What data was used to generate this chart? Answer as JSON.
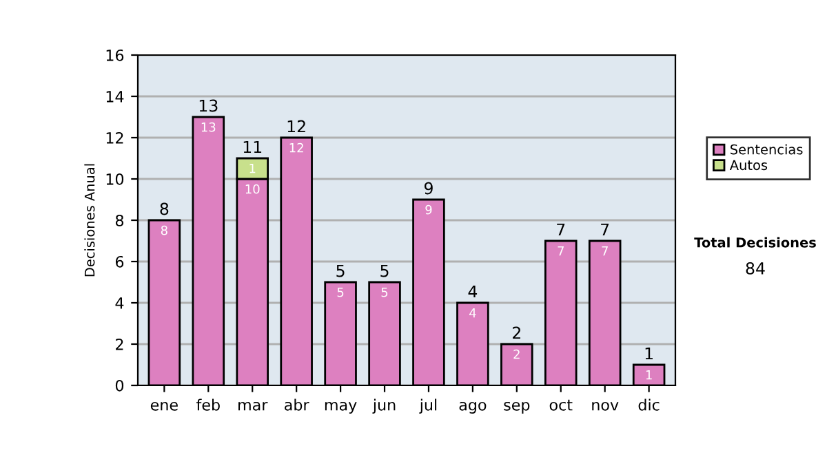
{
  "chart_data": {
    "type": "bar",
    "ylabel": "Decisiones Anual",
    "stacked": true,
    "categories": [
      "ene",
      "feb",
      "mar",
      "abr",
      "may",
      "jun",
      "jul",
      "ago",
      "sep",
      "oct",
      "nov",
      "dic"
    ],
    "series": [
      {
        "name": "Sentencias",
        "color": "#dd80c0",
        "values": [
          8,
          13,
          10,
          12,
          5,
          5,
          9,
          4,
          2,
          7,
          7,
          1
        ],
        "value_labels": [
          "8",
          "13",
          "10",
          "12",
          "5",
          "5",
          "9",
          "4",
          "2",
          "7",
          "7",
          "1"
        ]
      },
      {
        "name": "Autos",
        "color": "#c8e08c",
        "values": [
          null,
          null,
          1,
          null,
          null,
          null,
          null,
          null,
          null,
          null,
          null,
          null
        ],
        "value_labels": [
          null,
          null,
          "1",
          null,
          null,
          null,
          null,
          null,
          null,
          null,
          null,
          null
        ]
      }
    ],
    "totals": [
      "8",
      "13",
      "11",
      "12",
      "5",
      "5",
      "9",
      "4",
      "2",
      "7",
      "7",
      "1"
    ],
    "ylim": [
      0,
      16
    ],
    "yticks": [
      0,
      2,
      4,
      6,
      8,
      10,
      12,
      14,
      16
    ],
    "grid": "y",
    "legend": "right",
    "annotations": [
      "Total Decisiones",
      "84"
    ]
  }
}
